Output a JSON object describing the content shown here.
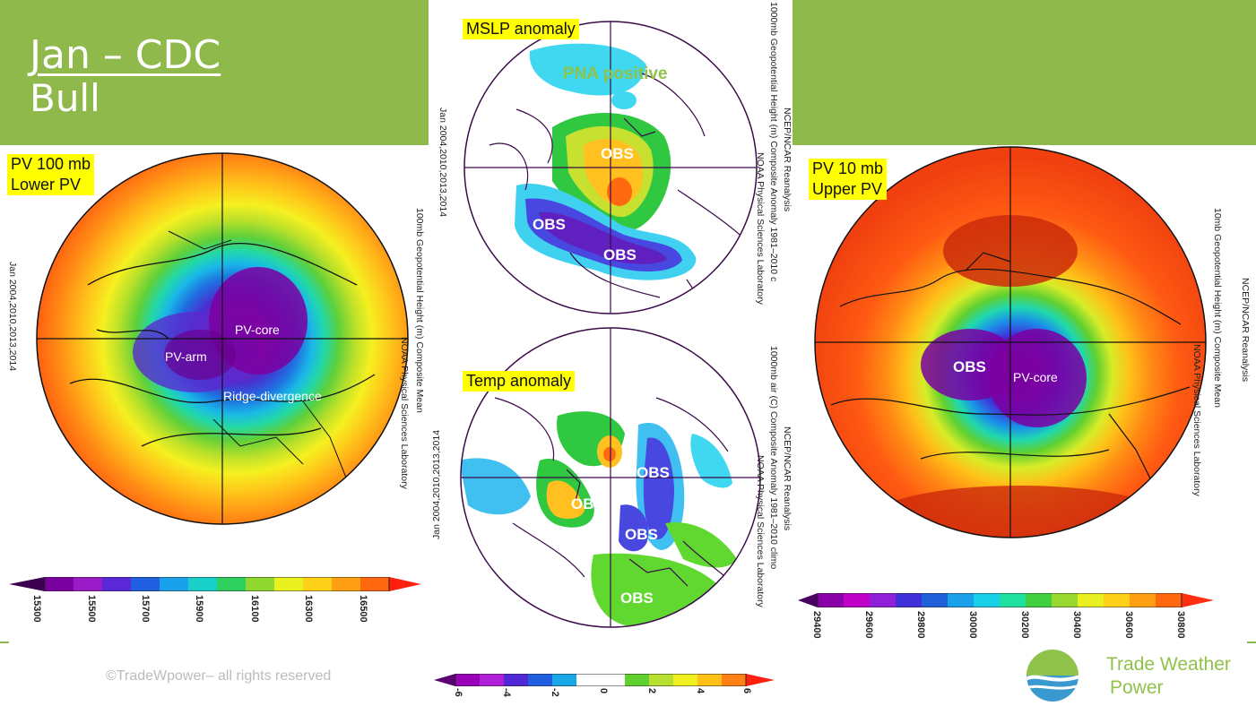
{
  "title": {
    "line1": "Jan – CDC",
    "line2": "Bull"
  },
  "left_panel": {
    "tag_line1": "PV 100 mb",
    "tag_line2": "Lower PV",
    "labels": {
      "core": "PV-core",
      "arm": "PV-arm",
      "ridge": "Ridge-divergence"
    },
    "side_years": "Jan 2004,2010,2013,2014",
    "side_title": "100mb Geopotential Height (m) Composite Mean",
    "side_years2": "Jan 2004,2010,2013,2014",
    "side_lab": "NOAA Physical Sciences Laboratory",
    "colorbar_ticks": [
      "15300",
      "15500",
      "15700",
      "15900",
      "16100",
      "16300",
      "16500"
    ]
  },
  "mslp_panel": {
    "tag": "MSLP anomaly",
    "pna": "PNA positive",
    "obs": [
      "OBS",
      "OBS",
      "OBS"
    ],
    "side_years": "Jan 2004,2010,2013,2014",
    "side_title1": "NCEP/NCAR Reanalysis",
    "side_title2": "1000mb Geopotential Height (m) Composite Anomaly 1981–2010 c",
    "side_lab": "NOAA Physical Sciences Laboratory"
  },
  "temp_panel": {
    "tag": "Temp anomaly",
    "obs": [
      "OBS",
      "OBS",
      "OBS",
      "OBS"
    ],
    "side_years": "Jan 2004,2010,2013,2014",
    "side_title1": "NCEP/NCAR Reanalysis",
    "side_title2": "1000mb air (C) Composite Anomaly 1981–2010 climo",
    "side_lab": "NOAA Physical Sciences Laboratory",
    "colorbar_ticks": [
      "-6",
      "-4",
      "-2",
      "0",
      "2",
      "4",
      "6"
    ]
  },
  "right_panel": {
    "tag_line1": "PV 10 mb",
    "tag_line2": "Upper PV",
    "labels": {
      "obs": "OBS",
      "core": "PV-core"
    },
    "side_title1": "NCEP/NCAR Reanalysis",
    "side_title2": "10mb Geopotential Height (m) Composite Mean",
    "side_lab": "NOAA Physical Sciences Laboratory",
    "colorbar_ticks": [
      "29400",
      "29600",
      "29800",
      "30000",
      "30200",
      "30400",
      "30600",
      "30800"
    ]
  },
  "footer": {
    "copyright": "©TradeWpower– all rights reserved"
  },
  "brand": {
    "line1": "Trade Weather",
    "line2": "Power"
  },
  "colors": {
    "green_band": "#8fb94b",
    "highlight": "#ffff00",
    "brand_green": "#8fc24a"
  }
}
